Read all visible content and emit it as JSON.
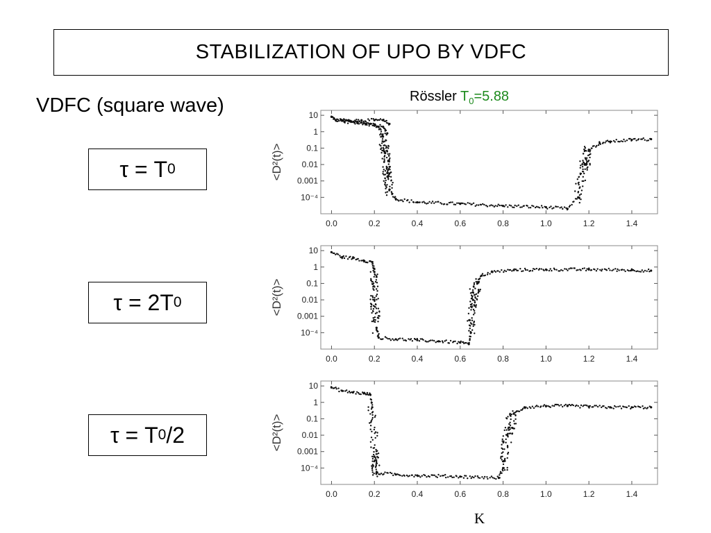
{
  "slide_title": "STABILIZATION OF UPO BY VDFC",
  "subtitle": "VDFC (square wave)",
  "chart_header": {
    "system": "Rössler",
    "period_symbol": "T",
    "period_sub": "0",
    "period_value": "=5.88"
  },
  "tau_labels": [
    {
      "pre": "τ = T",
      "sub": "0",
      "post": ""
    },
    {
      "pre": "τ = 2T",
      "sub": "0",
      "post": ""
    },
    {
      "pre": "τ = T",
      "sub": "0",
      "post": "/2"
    }
  ],
  "ylabel": "<D²(t)>",
  "xlabel": "K",
  "chart_data": [
    {
      "type": "scatter",
      "tau": "T0",
      "xlim": [
        -0.05,
        1.52
      ],
      "y_scale": "log",
      "ylim": [
        1e-05,
        20
      ],
      "x_ticks": [
        "0.0",
        "0.2",
        "0.4",
        "0.6",
        "0.8",
        "1.0",
        "1.2",
        "1.4"
      ],
      "y_ticks": [
        "10",
        "1",
        "0.1",
        "0.01",
        "0.001",
        "10⁻⁴"
      ],
      "series": [
        {
          "points": [
            [
              0.0,
              8
            ],
            [
              0.02,
              5
            ],
            [
              0.05,
              5
            ],
            [
              0.08,
              4.5
            ],
            [
              0.12,
              4
            ],
            [
              0.16,
              3
            ],
            [
              0.2,
              2.5
            ],
            [
              0.22,
              2
            ],
            [
              0.24,
              0.5
            ],
            [
              0.25,
              0.05
            ],
            [
              0.26,
              0.003
            ],
            [
              0.27,
              0.0003
            ],
            [
              0.3,
              8e-05
            ],
            [
              0.4,
              5e-05
            ],
            [
              0.6,
              4e-05
            ],
            [
              0.8,
              3e-05
            ],
            [
              1.0,
              2.5e-05
            ],
            [
              1.1,
              2e-05
            ],
            [
              1.15,
              0.0001
            ],
            [
              1.18,
              0.01
            ],
            [
              1.2,
              0.08
            ],
            [
              1.25,
              0.2
            ],
            [
              1.3,
              0.25
            ],
            [
              1.4,
              0.32
            ],
            [
              1.49,
              0.35
            ]
          ]
        },
        {
          "points": [
            [
              0.08,
              5
            ],
            [
              0.14,
              5
            ],
            [
              0.2,
              5
            ],
            [
              0.24,
              5
            ],
            [
              0.27,
              3
            ]
          ]
        },
        {
          "points": [
            [
              0.06,
              4
            ],
            [
              0.12,
              3.5
            ],
            [
              0.18,
              3
            ],
            [
              0.24,
              2
            ],
            [
              0.26,
              0.8
            ]
          ]
        }
      ]
    },
    {
      "type": "scatter",
      "tau": "2T0",
      "xlim": [
        -0.05,
        1.52
      ],
      "y_scale": "log",
      "ylim": [
        1e-05,
        20
      ],
      "x_ticks": [
        "0.0",
        "0.2",
        "0.4",
        "0.6",
        "0.8",
        "1.0",
        "1.2",
        "1.4"
      ],
      "y_ticks": [
        "10",
        "1",
        "0.1",
        "0.01",
        "0.001",
        "10⁻⁴"
      ],
      "series": [
        {
          "points": [
            [
              0.0,
              8
            ],
            [
              0.05,
              4
            ],
            [
              0.1,
              3.5
            ],
            [
              0.15,
              2.5
            ],
            [
              0.19,
              2
            ],
            [
              0.2,
              0.5
            ],
            [
              0.2,
              0.01
            ],
            [
              0.21,
              0.0002
            ],
            [
              0.22,
              5e-05
            ],
            [
              0.3,
              4e-05
            ],
            [
              0.4,
              3.5e-05
            ],
            [
              0.5,
              3e-05
            ],
            [
              0.6,
              2.5e-05
            ],
            [
              0.64,
              2e-05
            ],
            [
              0.65,
              0.0001
            ],
            [
              0.66,
              0.01
            ],
            [
              0.68,
              0.1
            ],
            [
              0.7,
              0.3
            ],
            [
              0.75,
              0.5
            ],
            [
              0.85,
              0.65
            ],
            [
              1.0,
              0.7
            ],
            [
              1.2,
              0.7
            ],
            [
              1.4,
              0.65
            ],
            [
              1.49,
              0.6
            ]
          ]
        }
      ]
    },
    {
      "type": "scatter",
      "tau": "T0/2",
      "xlim": [
        -0.05,
        1.52
      ],
      "y_scale": "log",
      "ylim": [
        1e-05,
        20
      ],
      "x_ticks": [
        "0.0",
        "0.2",
        "0.4",
        "0.6",
        "0.8",
        "1.0",
        "1.2",
        "1.4"
      ],
      "y_ticks": [
        "10",
        "1",
        "0.1",
        "0.01",
        "0.001",
        "10⁻⁴"
      ],
      "series": [
        {
          "points": [
            [
              0.0,
              8
            ],
            [
              0.05,
              5
            ],
            [
              0.1,
              4
            ],
            [
              0.15,
              3.5
            ],
            [
              0.18,
              3
            ],
            [
              0.19,
              0.5
            ],
            [
              0.2,
              0.0005
            ],
            [
              0.21,
              5e-05
            ],
            [
              0.3,
              4e-05
            ],
            [
              0.4,
              3.5e-05
            ],
            [
              0.6,
              3e-05
            ],
            [
              0.78,
              2.5e-05
            ],
            [
              0.8,
              0.0001
            ],
            [
              0.82,
              0.01
            ],
            [
              0.85,
              0.2
            ],
            [
              0.9,
              0.5
            ],
            [
              1.0,
              0.6
            ],
            [
              1.1,
              0.6
            ],
            [
              1.2,
              0.55
            ],
            [
              1.3,
              0.5
            ],
            [
              1.4,
              0.5
            ],
            [
              1.49,
              0.5
            ]
          ]
        }
      ]
    }
  ]
}
